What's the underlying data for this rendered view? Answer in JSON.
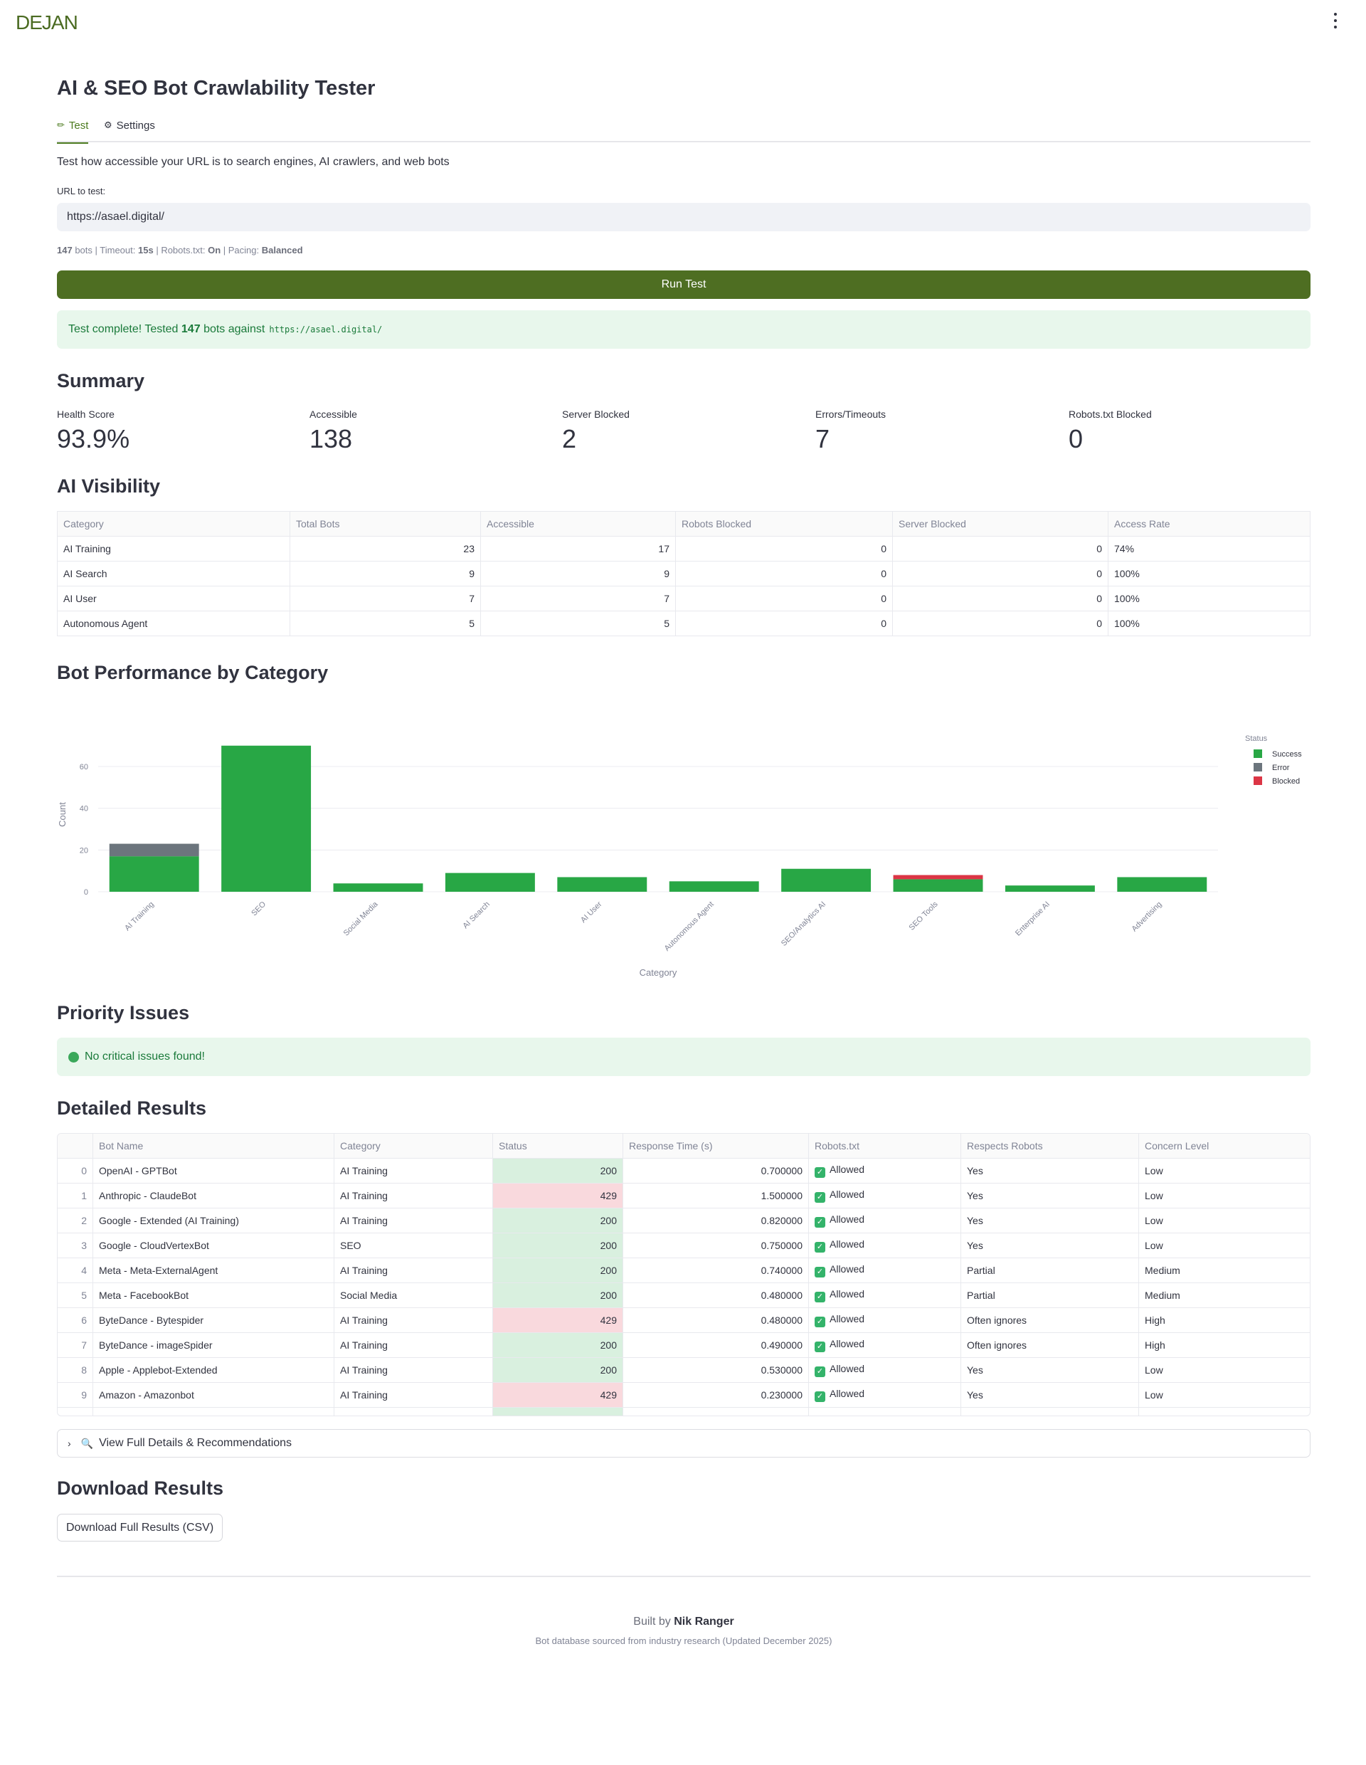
{
  "header": {
    "logo_text": "DEJAN",
    "menu_icon": "kebab-menu-icon"
  },
  "page": {
    "title": "AI & SEO Bot Crawlability Tester",
    "tabs": [
      {
        "label": "Test",
        "icon": "pencil-icon",
        "active": true
      },
      {
        "label": "Settings",
        "icon": "gear-icon",
        "active": false
      }
    ],
    "description": "Test how accessible your URL is to search engines, AI crawlers, and web bots",
    "url_label": "URL to test:",
    "url_value": "https://asael.digital/",
    "meta": {
      "bots": "147",
      "bots_label": "bots",
      "timeout_label": "Timeout:",
      "timeout": "15s",
      "robots_label": "Robots.txt:",
      "robots": "On",
      "pacing_label": "Pacing:",
      "pacing": "Balanced"
    },
    "run_button": "Run Test",
    "complete": {
      "prefix": "Test complete! Tested",
      "count": "147",
      "middle": "bots against",
      "url": "https://asael.digital/"
    }
  },
  "summary": {
    "heading": "Summary",
    "metrics": [
      {
        "label": "Health Score",
        "value": "93.9%"
      },
      {
        "label": "Accessible",
        "value": "138"
      },
      {
        "label": "Server Blocked",
        "value": "2"
      },
      {
        "label": "Errors/Timeouts",
        "value": "7"
      },
      {
        "label": "Robots.txt Blocked",
        "value": "0"
      }
    ]
  },
  "ai_visibility": {
    "heading": "AI Visibility",
    "columns": [
      "Category",
      "Total Bots",
      "Accessible",
      "Robots Blocked",
      "Server Blocked",
      "Access Rate"
    ],
    "rows": [
      [
        "AI Training",
        "23",
        "17",
        "0",
        "0",
        "74%"
      ],
      [
        "AI Search",
        "9",
        "9",
        "0",
        "0",
        "100%"
      ],
      [
        "AI User",
        "7",
        "7",
        "0",
        "0",
        "100%"
      ],
      [
        "Autonomous Agent",
        "5",
        "5",
        "0",
        "0",
        "100%"
      ]
    ]
  },
  "performance": {
    "heading": "Bot Performance by Category"
  },
  "chart_data": {
    "type": "bar",
    "stacked": true,
    "categories": [
      "AI Training",
      "SEO",
      "Social Media",
      "AI Search",
      "AI User",
      "Autonomous Agent",
      "SEO/Analytics AI",
      "SEO Tools",
      "Enterprise AI",
      "Advertising"
    ],
    "series": [
      {
        "name": "Success",
        "color": "#28a745",
        "values": [
          17,
          70,
          4,
          9,
          7,
          5,
          11,
          6,
          3,
          7
        ]
      },
      {
        "name": "Error",
        "color": "#6c757d",
        "values": [
          6,
          0,
          0,
          0,
          0,
          0,
          0,
          0,
          0,
          0
        ]
      },
      {
        "name": "Blocked",
        "color": "#dc3545",
        "values": [
          0,
          0,
          0,
          0,
          0,
          0,
          0,
          2,
          0,
          0
        ]
      }
    ],
    "xlabel": "Category",
    "ylabel": "Count",
    "yticks": [
      0,
      20,
      40,
      60
    ],
    "ylim": [
      0,
      74
    ],
    "legend_title": "Status",
    "legend_position": "top-right",
    "grid": true
  },
  "priority": {
    "heading": "Priority Issues",
    "message": "No critical issues found!"
  },
  "detailed": {
    "heading": "Detailed Results",
    "columns": [
      "",
      "Bot Name",
      "Category",
      "Status",
      "Response Time (s)",
      "Robots.txt",
      "Respects Robots",
      "Concern Level"
    ],
    "rows": [
      [
        "0",
        "OpenAI - GPTBot",
        "AI Training",
        "200",
        "0.700000",
        "Allowed",
        "Yes",
        "Low"
      ],
      [
        "1",
        "Anthropic - ClaudeBot",
        "AI Training",
        "429",
        "1.500000",
        "Allowed",
        "Yes",
        "Low"
      ],
      [
        "2",
        "Google - Extended (AI Training)",
        "AI Training",
        "200",
        "0.820000",
        "Allowed",
        "Yes",
        "Low"
      ],
      [
        "3",
        "Google - CloudVertexBot",
        "SEO",
        "200",
        "0.750000",
        "Allowed",
        "Yes",
        "Low"
      ],
      [
        "4",
        "Meta - Meta-ExternalAgent",
        "AI Training",
        "200",
        "0.740000",
        "Allowed",
        "Partial",
        "Medium"
      ],
      [
        "5",
        "Meta - FacebookBot",
        "Social Media",
        "200",
        "0.480000",
        "Allowed",
        "Partial",
        "Medium"
      ],
      [
        "6",
        "ByteDance - Bytespider",
        "AI Training",
        "429",
        "0.480000",
        "Allowed",
        "Often ignores",
        "High"
      ],
      [
        "7",
        "ByteDance - imageSpider",
        "AI Training",
        "200",
        "0.490000",
        "Allowed",
        "Often ignores",
        "High"
      ],
      [
        "8",
        "Apple - Applebot-Extended",
        "AI Training",
        "200",
        "0.530000",
        "Allowed",
        "Yes",
        "Low"
      ],
      [
        "9",
        "Amazon - Amazonbot",
        "AI Training",
        "429",
        "0.230000",
        "Allowed",
        "Yes",
        "Low"
      ]
    ],
    "expander": "View Full Details & Recommendations"
  },
  "download": {
    "heading": "Download Results",
    "button": "Download Full Results (CSV)"
  },
  "footer": {
    "built_by": "Built by",
    "author": "Nik Ranger",
    "note": "Bot database sourced from industry research (Updated December 2025)"
  }
}
